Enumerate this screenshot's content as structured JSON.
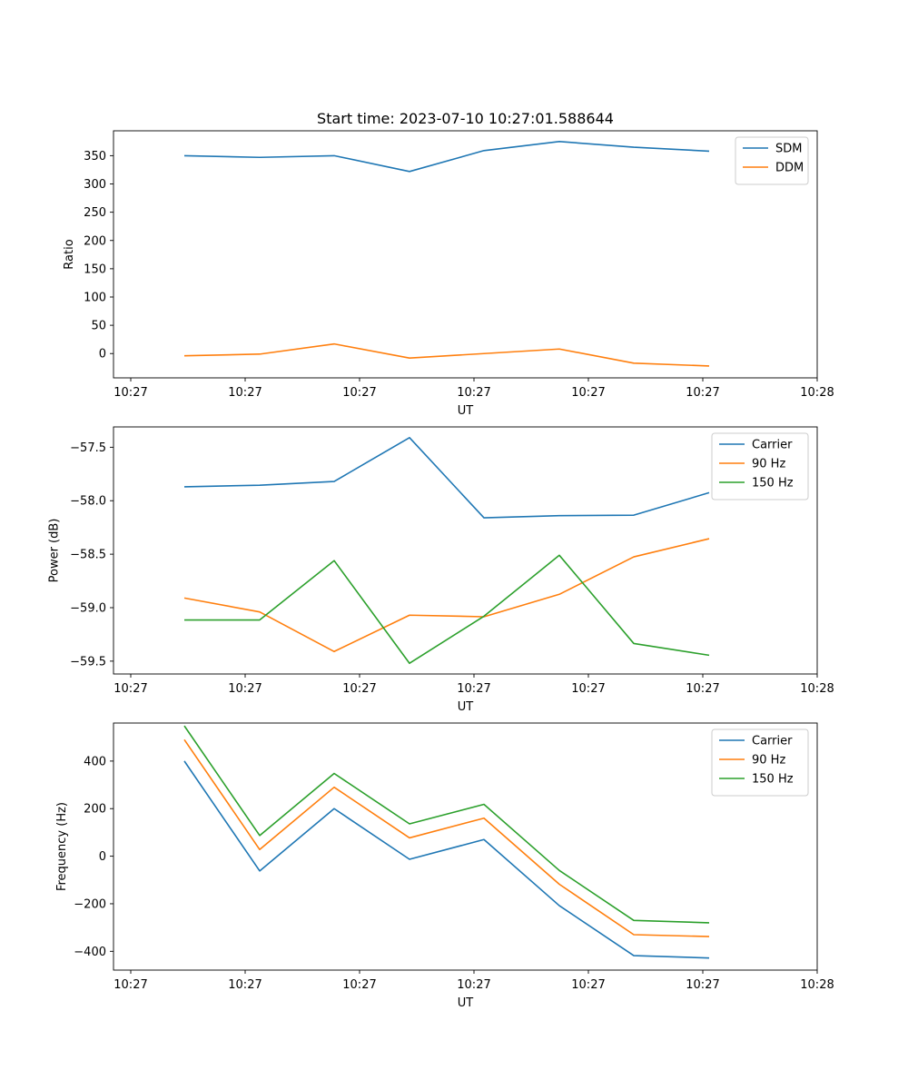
{
  "chart_data": [
    {
      "type": "line",
      "title": "Start time: 2023-07-10 10:27:01.588644",
      "xlabel": "UT",
      "ylabel": "Ratio",
      "x_tick_labels": [
        "10:27",
        "10:27",
        "10:27",
        "10:27",
        "10:27",
        "10:27",
        "10:28"
      ],
      "y_ticks": [
        0,
        50,
        100,
        150,
        200,
        250,
        300,
        350
      ],
      "y_tick_labels": [
        "0",
        "50",
        "100",
        "150",
        "200",
        "250",
        "300",
        "350"
      ],
      "ylim": [
        -43,
        394
      ],
      "legend_position": "upper-right",
      "series": [
        {
          "name": "SDM",
          "color": "#1f77b4",
          "values": [
            350,
            347,
            350,
            322,
            359,
            375,
            365,
            358
          ]
        },
        {
          "name": "DDM",
          "color": "#ff7f0e",
          "values": [
            -4,
            -1,
            17,
            -8,
            0,
            8,
            -17,
            -22
          ]
        }
      ]
    },
    {
      "type": "line",
      "title": "",
      "xlabel": "UT",
      "ylabel": "Power (dB)",
      "x_tick_labels": [
        "10:27",
        "10:27",
        "10:27",
        "10:27",
        "10:27",
        "10:27",
        "10:28"
      ],
      "y_ticks": [
        -57.5,
        -58.0,
        -58.5,
        -59.0,
        -59.5
      ],
      "y_tick_labels": [
        "−57.5",
        "−58.0",
        "−58.5",
        "−59.0",
        "−59.5"
      ],
      "ylim": [
        -59.62,
        -57.31
      ],
      "legend_position": "upper-right",
      "series": [
        {
          "name": "Carrier",
          "color": "#1f77b4",
          "values": [
            -57.87,
            -57.855,
            -57.82,
            -57.41,
            -58.16,
            -58.14,
            -58.135,
            -57.925
          ]
        },
        {
          "name": "90 Hz",
          "color": "#ff7f0e",
          "values": [
            -58.91,
            -59.04,
            -59.41,
            -59.07,
            -59.085,
            -58.875,
            -58.525,
            -58.355
          ]
        },
        {
          "name": "150 Hz",
          "color": "#2ca02c",
          "values": [
            -59.115,
            -59.115,
            -58.56,
            -59.52,
            -59.08,
            -58.51,
            -59.335,
            -59.445
          ]
        }
      ]
    },
    {
      "type": "line",
      "title": "",
      "xlabel": "UT",
      "ylabel": "Frequency (Hz)",
      "x_tick_labels": [
        "10:27",
        "10:27",
        "10:27",
        "10:27",
        "10:27",
        "10:27",
        "10:28"
      ],
      "y_ticks": [
        400,
        200,
        0,
        -200,
        -400
      ],
      "y_tick_labels": [
        "400",
        "200",
        "0",
        "−200",
        "−400"
      ],
      "ylim": [
        -479,
        560
      ],
      "legend_position": "upper-right",
      "series": [
        {
          "name": "Carrier",
          "color": "#1f77b4",
          "values": [
            400,
            -62,
            200,
            -13,
            70,
            -208,
            -418,
            -428
          ]
        },
        {
          "name": "90 Hz",
          "color": "#ff7f0e",
          "values": [
            490,
            28,
            290,
            77,
            160,
            -118,
            -330,
            -338
          ]
        },
        {
          "name": "150 Hz",
          "color": "#2ca02c",
          "values": [
            548,
            87,
            348,
            136,
            218,
            -60,
            -270,
            -280
          ]
        }
      ]
    }
  ]
}
